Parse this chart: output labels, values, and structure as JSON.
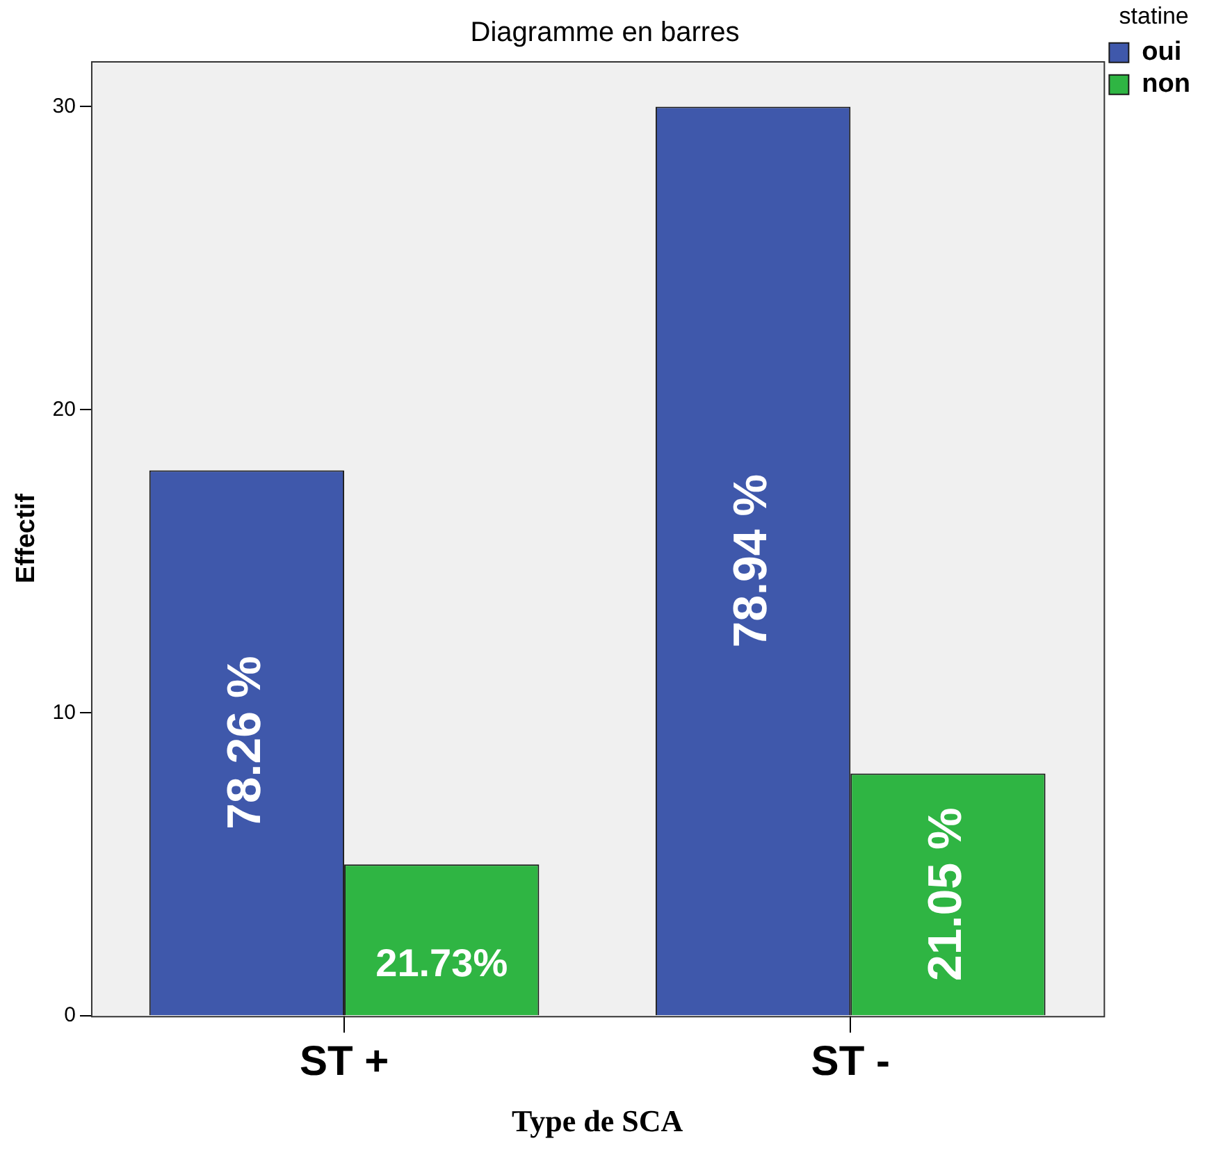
{
  "chart_data": {
    "type": "bar",
    "title": "Diagramme en barres",
    "xlabel": "Type de SCA",
    "ylabel": "Effectif",
    "legend_title": "statine",
    "categories": [
      "ST +",
      "ST -"
    ],
    "series": [
      {
        "name": "oui",
        "color": "#3f58ab",
        "values": [
          18,
          30
        ]
      },
      {
        "name": "non",
        "color": "#2fb543",
        "values": [
          5,
          8
        ]
      }
    ],
    "annotations": [
      "78.26 %",
      "78.94 %",
      "21.73%",
      "21.05 %"
    ],
    "ylim": [
      0,
      31.5
    ],
    "yticks": [
      0,
      10,
      20,
      30
    ],
    "grid": false,
    "legend": "top right"
  }
}
